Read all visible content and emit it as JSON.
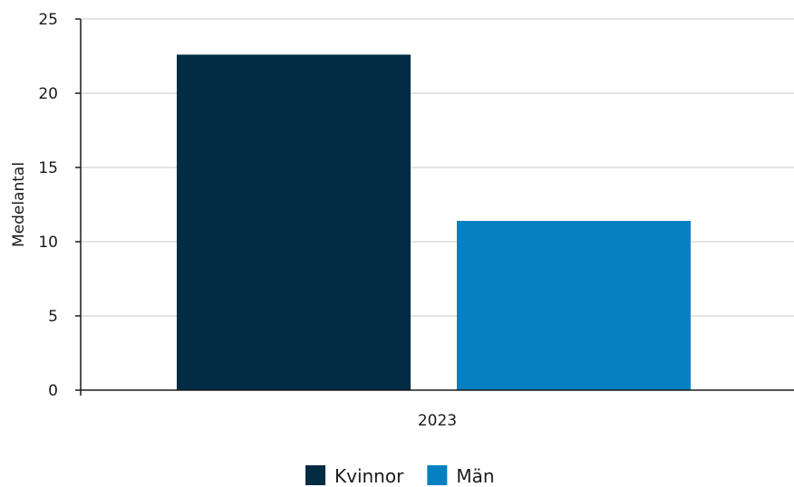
{
  "chart_data": {
    "type": "bar",
    "categories": [
      "2023"
    ],
    "series": [
      {
        "name": "Kvinnor",
        "values": [
          22.6
        ],
        "color": "#022b44"
      },
      {
        "name": "Män",
        "values": [
          11.4
        ],
        "color": "#0680c1"
      }
    ],
    "title": "",
    "xlabel": "",
    "ylabel": "Medelantal",
    "ylim": [
      0,
      25
    ],
    "yticks": [
      0,
      5,
      10,
      15,
      20,
      25
    ],
    "grid": true,
    "legend": "bottom-center"
  }
}
